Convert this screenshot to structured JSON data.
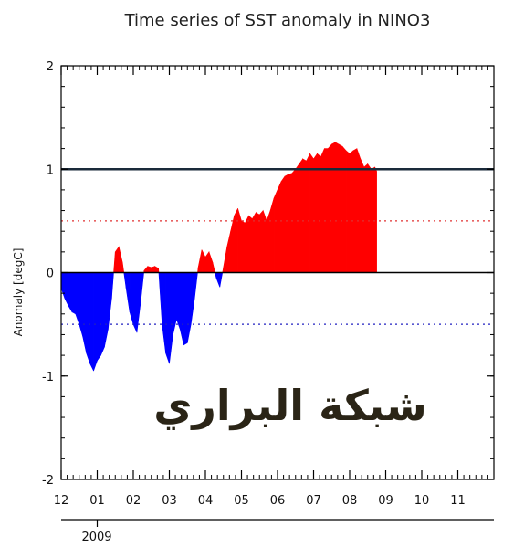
{
  "chart_data": {
    "type": "area",
    "title": "Time series of SST anomaly in NINO3",
    "ylabel": "Anomaly [degC]",
    "xlabel": "",
    "ylim": [
      -2,
      2
    ],
    "yticks": [
      "2",
      "1",
      "0",
      "-1",
      "-2"
    ],
    "ytick_values": [
      2,
      1,
      0,
      -1,
      -2
    ],
    "xlim_months": [
      0,
      12
    ],
    "xticks": [
      "12",
      "01",
      "02",
      "03",
      "04",
      "05",
      "06",
      "07",
      "08",
      "09",
      "10",
      "11"
    ],
    "year_label": "2009",
    "reference_lines": [
      {
        "value": 1,
        "style": "solid",
        "color": "#1a2a3a"
      },
      {
        "value": 0.5,
        "style": "dotted",
        "color": "#e03030"
      },
      {
        "value": 0,
        "style": "solid",
        "color": "#000000"
      },
      {
        "value": -0.5,
        "style": "dotted",
        "color": "#2020c0"
      }
    ],
    "positive_color": "#ff0000",
    "negative_color": "#0000ff",
    "series": [
      {
        "x": [
          0.0,
          0.1,
          0.2,
          0.3,
          0.4,
          0.5,
          0.6,
          0.7,
          0.8,
          0.9,
          1.0,
          1.1,
          1.2,
          1.3,
          1.4,
          1.5,
          1.6,
          1.7,
          1.8,
          1.9,
          2.0,
          2.1,
          2.2,
          2.3,
          2.4,
          2.5,
          2.6,
          2.7,
          2.8,
          2.9,
          3.0,
          3.1,
          3.2,
          3.3,
          3.4,
          3.5,
          3.6,
          3.7,
          3.8,
          3.9,
          4.0,
          4.1,
          4.2,
          4.3,
          4.4,
          4.5,
          4.6,
          4.7,
          4.8,
          4.9,
          5.0,
          5.1,
          5.2,
          5.3,
          5.4,
          5.5,
          5.6,
          5.7,
          5.8,
          5.9,
          6.0,
          6.1,
          6.2,
          6.3,
          6.4,
          6.5,
          6.6,
          6.7,
          6.8,
          6.9,
          7.0,
          7.1,
          7.2,
          7.3,
          7.4,
          7.5,
          7.6,
          7.7,
          7.8,
          7.9,
          8.0,
          8.1,
          8.2,
          8.3,
          8.4,
          8.5,
          8.6,
          8.7,
          8.75
        ],
        "y": [
          -0.15,
          -0.25,
          -0.32,
          -0.38,
          -0.4,
          -0.5,
          -0.62,
          -0.78,
          -0.88,
          -0.95,
          -0.85,
          -0.8,
          -0.72,
          -0.55,
          -0.25,
          0.2,
          0.25,
          0.1,
          -0.15,
          -0.38,
          -0.5,
          -0.58,
          -0.3,
          0.02,
          0.06,
          0.05,
          0.06,
          0.04,
          -0.5,
          -0.78,
          -0.88,
          -0.6,
          -0.45,
          -0.55,
          -0.7,
          -0.68,
          -0.5,
          -0.25,
          0.05,
          0.22,
          0.15,
          0.2,
          0.1,
          -0.05,
          -0.14,
          0.05,
          0.25,
          0.4,
          0.55,
          0.62,
          0.5,
          0.48,
          0.55,
          0.52,
          0.58,
          0.56,
          0.6,
          0.5,
          0.6,
          0.72,
          0.8,
          0.88,
          0.93,
          0.95,
          0.96,
          1.0,
          1.05,
          1.1,
          1.08,
          1.15,
          1.1,
          1.15,
          1.12,
          1.2,
          1.2,
          1.24,
          1.26,
          1.24,
          1.22,
          1.18,
          1.15,
          1.18,
          1.2,
          1.1,
          1.02,
          1.05,
          1.0,
          1.02,
          0.98
        ]
      }
    ]
  },
  "watermark": {
    "text": "شبكة البراري"
  }
}
